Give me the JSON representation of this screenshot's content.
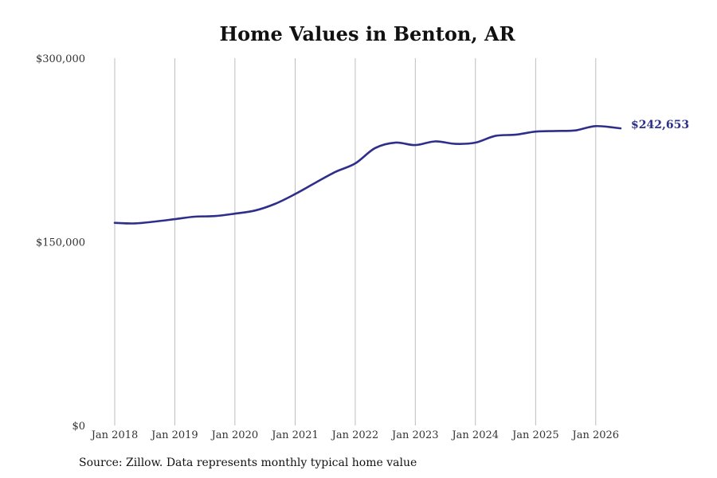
{
  "chart_data": {
    "type": "line",
    "title": "Home Values in Benton, AR",
    "source": "Source: Zillow. Data represents monthly typical home value",
    "end_label": "$242,653",
    "ylim": [
      0,
      300000
    ],
    "y_ticks": [
      {
        "value": 0,
        "label": "$0"
      },
      {
        "value": 150000,
        "label": "$150,000"
      },
      {
        "value": 300000,
        "label": "$300,000"
      }
    ],
    "xlim": [
      "2018-01-01",
      "2026-06-01"
    ],
    "x_ticks": [
      {
        "date": "2018-01-01",
        "label": "Jan 2018"
      },
      {
        "date": "2019-01-01",
        "label": "Jan 2019"
      },
      {
        "date": "2020-01-01",
        "label": "Jan 2020"
      },
      {
        "date": "2021-01-01",
        "label": "Jan 2021"
      },
      {
        "date": "2022-01-01",
        "label": "Jan 2022"
      },
      {
        "date": "2023-01-01",
        "label": "Jan 2023"
      },
      {
        "date": "2024-01-01",
        "label": "Jan 2024"
      },
      {
        "date": "2025-01-01",
        "label": "Jan 2025"
      },
      {
        "date": "2026-01-01",
        "label": "Jan 2026"
      }
    ],
    "grid": {
      "x": true,
      "y": false
    },
    "colors": {
      "line": "#2e2f8a",
      "grid": "#bdbdbd",
      "end_label": "#2e2f8a"
    },
    "series": [
      {
        "x": [
          "2018-01-01",
          "2018-05-01",
          "2018-09-01",
          "2019-01-01",
          "2019-05-01",
          "2019-09-01",
          "2020-01-01",
          "2020-05-01",
          "2020-09-01",
          "2021-01-01",
          "2021-05-01",
          "2021-09-01",
          "2022-01-01",
          "2022-05-01",
          "2022-09-01",
          "2023-01-01",
          "2023-05-01",
          "2023-09-01",
          "2024-01-01",
          "2024-05-01",
          "2024-09-01",
          "2025-01-01",
          "2025-05-01",
          "2025-09-01",
          "2026-01-01",
          "2026-06-01"
        ],
        "y": [
          165500,
          165000,
          166500,
          168500,
          170500,
          171000,
          173000,
          175500,
          181000,
          189000,
          198000,
          207000,
          214000,
          226500,
          231000,
          229000,
          232000,
          230000,
          231000,
          236500,
          237500,
          240000,
          240500,
          241000,
          244500,
          242653
        ]
      }
    ]
  }
}
